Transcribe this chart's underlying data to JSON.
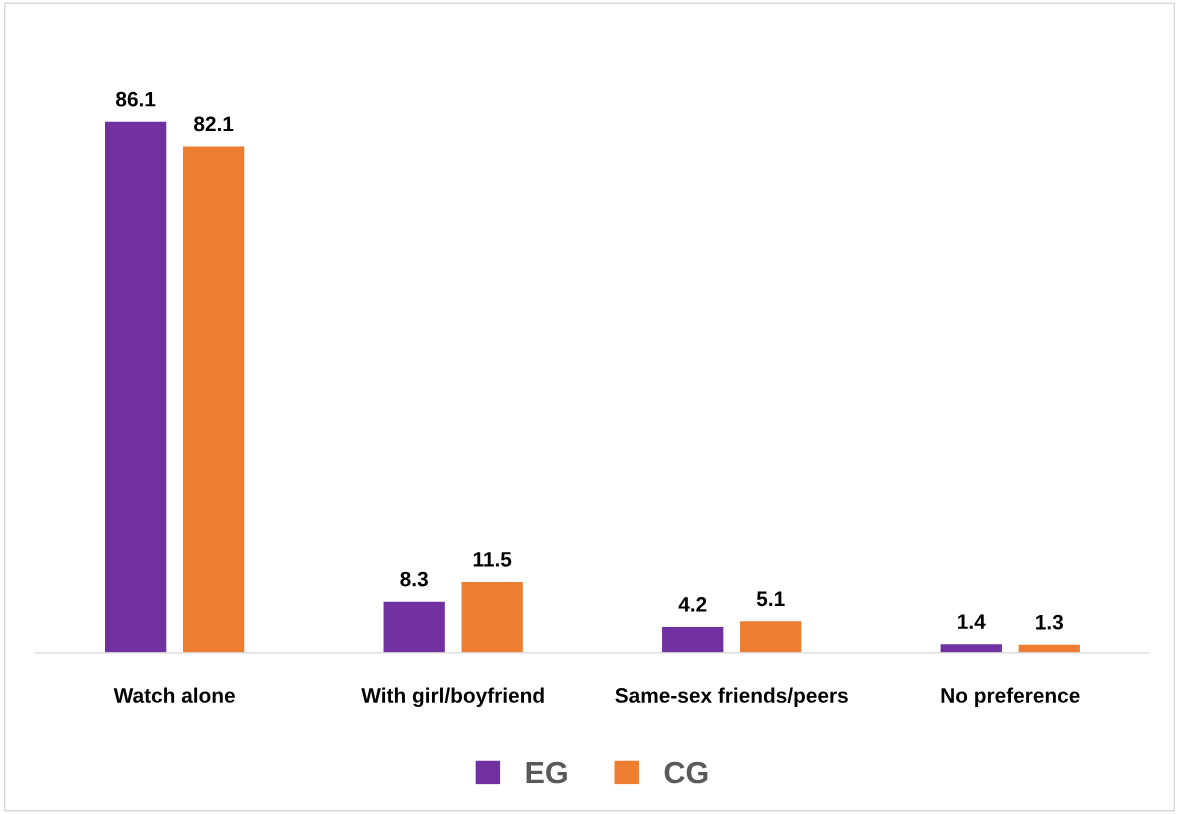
{
  "chart_data": {
    "type": "bar",
    "categories": [
      "Watch alone",
      "With girl/boyfriend",
      "Same-sex friends/peers",
      "No preference"
    ],
    "series": [
      {
        "name": "EG",
        "color": "#7030a0",
        "values": [
          86.1,
          8.3,
          4.2,
          1.4
        ]
      },
      {
        "name": "CG",
        "color": "#ed7d31",
        "values": [
          82.1,
          11.5,
          5.1,
          1.3
        ]
      }
    ],
    "data_labels": true,
    "legend": "bottom",
    "grid": false
  }
}
